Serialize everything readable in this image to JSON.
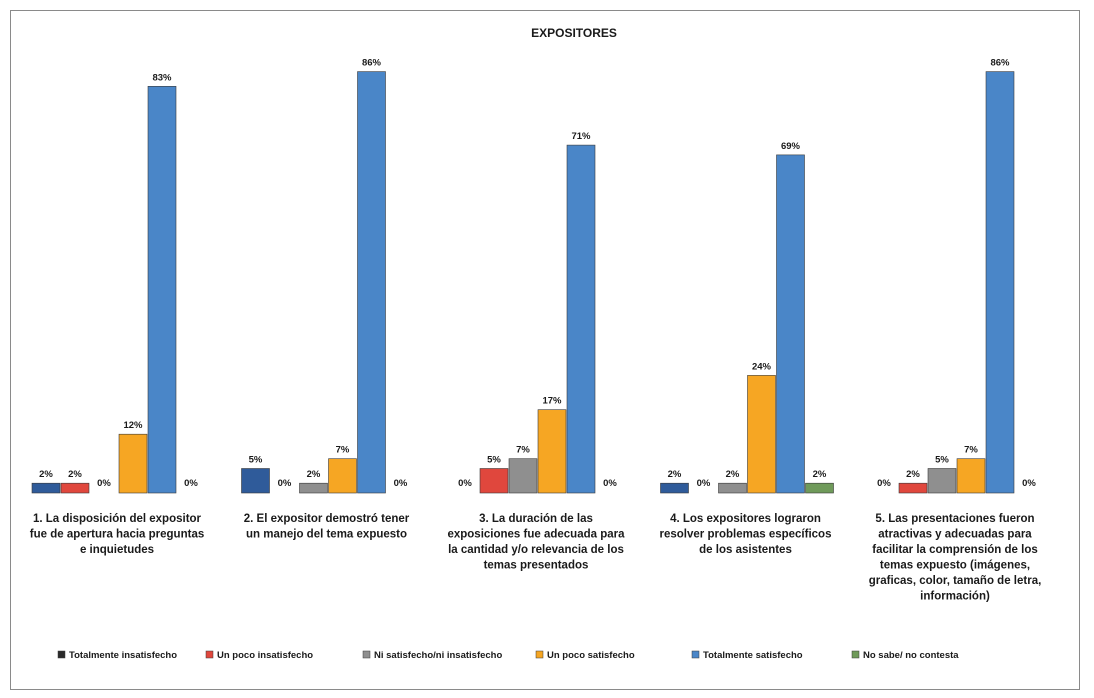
{
  "chart_data": {
    "type": "bar",
    "title": "EXPOSITORES",
    "categories": [
      "1. La disposición del expositor fue de apertura hacia preguntas e inquietudes",
      "2. El expositor demostró tener un manejo del tema expuesto",
      "3. La duración de las exposiciones fue adecuada para la cantidad y/o relevancia de los temas presentados",
      "4. Los expositores lograron resolver problemas específicos de los asistentes",
      "5. Las presentaciones fueron atractivas y adecuadas para facilitar la comprensión de los temas expuesto (imágenes, graficas, color, tamaño de letra, información)"
    ],
    "category_lines": [
      [
        "1. La disposición del expositor",
        "fue de apertura hacia preguntas",
        "e inquietudes"
      ],
      [
        "2. El expositor demostró tener",
        "un manejo del tema expuesto"
      ],
      [
        "3. La duración de las",
        "exposiciones fue adecuada para",
        "la cantidad y/o relevancia de los",
        "temas presentados"
      ],
      [
        "4. Los expositores lograron",
        "resolver problemas específicos",
        "de los asistentes"
      ],
      [
        "5. Las presentaciones fueron",
        "atractivas y adecuadas para",
        "facilitar la comprensión de los",
        "temas expuesto (imágenes,",
        "graficas, color, tamaño de letra,",
        "información)"
      ]
    ],
    "series": [
      {
        "name": "Totalmente insatisfecho",
        "color": "#2f5b9a",
        "values": [
          2,
          5,
          0,
          2,
          0
        ]
      },
      {
        "name": "Un poco insatisfecho",
        "color": "#e0473d",
        "values": [
          2,
          0,
          5,
          0,
          2
        ]
      },
      {
        "name": "Ni satisfecho/ni insatisfecho",
        "color": "#8f8f8f",
        "values": [
          0,
          2,
          7,
          2,
          5
        ]
      },
      {
        "name": "Un poco satisfecho",
        "color": "#f6a623",
        "values": [
          12,
          7,
          17,
          24,
          7
        ]
      },
      {
        "name": "Totalmente satisfecho",
        "color": "#4a86c8",
        "values": [
          83,
          86,
          71,
          69,
          86
        ]
      },
      {
        "name": "No sabe/ no contesta",
        "color": "#6f9a5a",
        "values": [
          0,
          0,
          0,
          2,
          0
        ]
      }
    ],
    "value_labels": [
      [
        "2%",
        "2%",
        "0%",
        "12%",
        "83%",
        "0%"
      ],
      [
        "5%",
        "0%",
        "2%",
        "7%",
        "86%",
        "0%"
      ],
      [
        "0%",
        "5%",
        "7%",
        "17%",
        "71%",
        "0%"
      ],
      [
        "2%",
        "0%",
        "2%",
        "24%",
        "69%",
        "2%"
      ],
      [
        "0%",
        "2%",
        "5%",
        "7%",
        "86%",
        "0%"
      ]
    ],
    "ylim": [
      0,
      100
    ],
    "grid": false,
    "legend_position": "bottom"
  }
}
